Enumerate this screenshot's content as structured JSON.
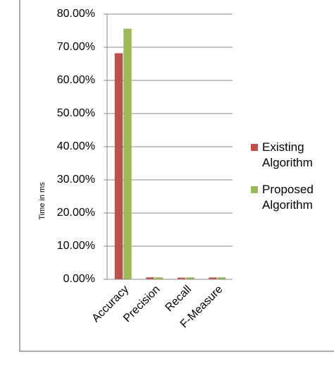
{
  "chart_data": {
    "type": "bar",
    "ylabel": "Time in ms",
    "categories": [
      "Accuracy",
      "Precision",
      "Recall",
      "F-Measure"
    ],
    "series": [
      {
        "name": "Existing Algorithm",
        "color": "#c0504d",
        "values": [
          68.2,
          0.6,
          0.5,
          0.55
        ]
      },
      {
        "name": "Proposed Algorithm",
        "color": "#9bbb59",
        "values": [
          75.6,
          0.6,
          0.6,
          0.6
        ]
      }
    ],
    "ylim": [
      0,
      80
    ],
    "yticks": [
      {
        "value": 0,
        "label": "0.00%"
      },
      {
        "value": 10,
        "label": "10.00%"
      },
      {
        "value": 20,
        "label": "20.00%"
      },
      {
        "value": 30,
        "label": "30.00%"
      },
      {
        "value": 40,
        "label": "40.00%"
      },
      {
        "value": 50,
        "label": "50.00%"
      },
      {
        "value": 60,
        "label": "60.00%"
      },
      {
        "value": 70,
        "label": "70.00%"
      },
      {
        "value": 80,
        "label": "80.00%"
      }
    ],
    "grid": true,
    "legend": "right"
  }
}
